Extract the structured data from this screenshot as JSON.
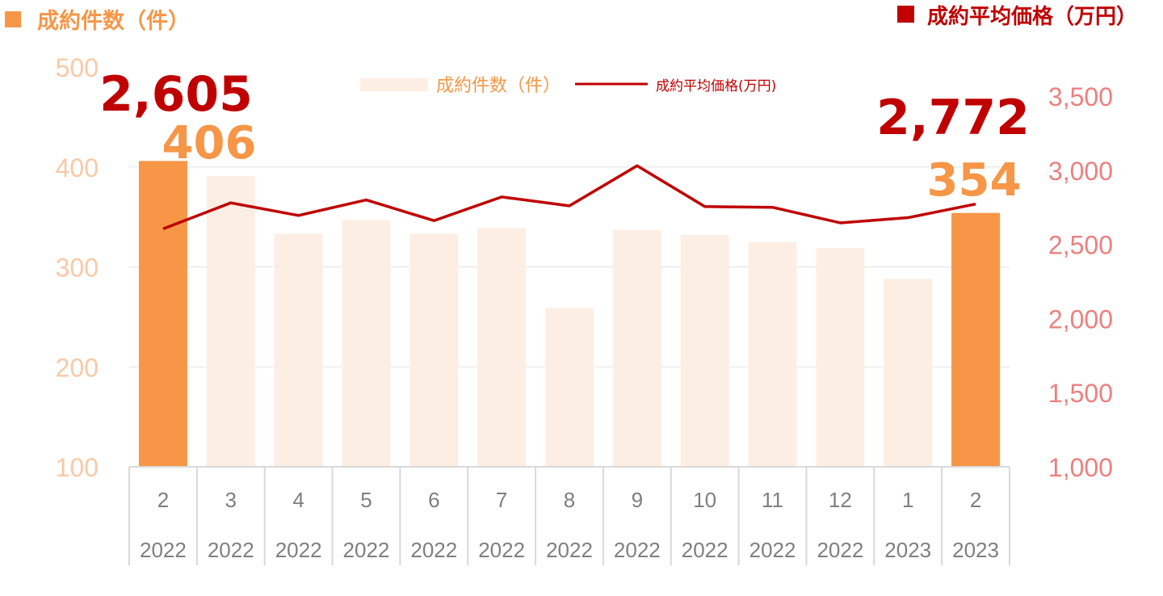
{
  "header": {
    "left_title": "成約件数（件）",
    "right_title": "成約平均価格（万円）"
  },
  "colors": {
    "bar_highlight": "#f79646",
    "bar_normal": "#fdeee3",
    "line": "#c00000",
    "left_axis": "#f8c9a6",
    "right_axis": "#ee7f7f",
    "count_label": "#f79646",
    "price_label": "#c00000"
  },
  "chart_data": {
    "type": "bar+line",
    "categories": [
      {
        "month": "2",
        "year": "2022"
      },
      {
        "month": "3",
        "year": "2022"
      },
      {
        "month": "4",
        "year": "2022"
      },
      {
        "month": "5",
        "year": "2022"
      },
      {
        "month": "6",
        "year": "2022"
      },
      {
        "month": "7",
        "year": "2022"
      },
      {
        "month": "8",
        "year": "2022"
      },
      {
        "month": "9",
        "year": "2022"
      },
      {
        "month": "10",
        "year": "2022"
      },
      {
        "month": "11",
        "year": "2022"
      },
      {
        "month": "12",
        "year": "2022"
      },
      {
        "month": "1",
        "year": "2023"
      },
      {
        "month": "2",
        "year": "2023"
      }
    ],
    "series": [
      {
        "name": "成約件数（件）",
        "type": "bar",
        "axis": "left",
        "values": [
          406,
          391,
          333,
          347,
          333,
          339,
          259,
          337,
          332,
          325,
          319,
          288,
          354
        ],
        "highlight_indices": [
          0,
          12
        ]
      },
      {
        "name": "成約平均価格(万円)",
        "type": "line",
        "axis": "right",
        "values": [
          2605,
          2780,
          2695,
          2800,
          2660,
          2820,
          2760,
          3030,
          2755,
          2750,
          2645,
          2680,
          2772
        ]
      }
    ],
    "left_axis": {
      "min": 100,
      "max": 500,
      "ticks": [
        "100",
        "200",
        "300",
        "400",
        "500"
      ]
    },
    "right_axis": {
      "min": 1000,
      "max": 3500,
      "ticks": [
        "1,000",
        "1,500",
        "2,000",
        "2,500",
        "3,000",
        "3,500"
      ]
    },
    "data_labels": [
      {
        "text": "2,605",
        "series": "price",
        "index": 0
      },
      {
        "text": "406",
        "series": "count",
        "index": 0
      },
      {
        "text": "2,772",
        "series": "price",
        "index": 12
      },
      {
        "text": "354",
        "series": "count",
        "index": 12
      }
    ],
    "legend_position": "top-center",
    "grid": true
  }
}
